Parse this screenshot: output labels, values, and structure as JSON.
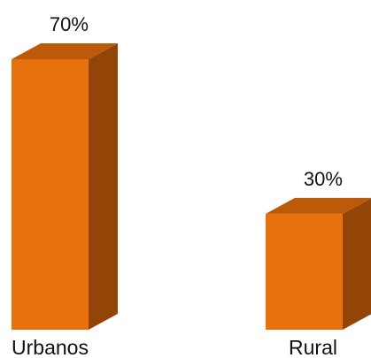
{
  "chart_data": {
    "type": "bar",
    "categories": [
      "Urbanos",
      "Rural"
    ],
    "values": [
      70,
      30
    ],
    "data_labels": [
      "70%",
      "30%"
    ],
    "title": "",
    "xlabel": "",
    "ylabel": "",
    "ylim": [
      0,
      70
    ],
    "grid": false,
    "legend": "none",
    "style": "3d-column",
    "colors": {
      "front": "#E8710F",
      "side": "#934407",
      "top": "#BD5A0A"
    }
  }
}
